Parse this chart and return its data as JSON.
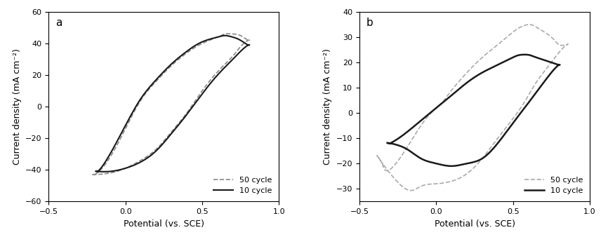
{
  "panel_a": {
    "label": "a",
    "xlim": [
      -0.5,
      1.0
    ],
    "ylim": [
      -60,
      60
    ],
    "xticks": [
      -0.5,
      0.0,
      0.5,
      1.0
    ],
    "yticks": [
      -60,
      -40,
      -20,
      0,
      20,
      40,
      60
    ],
    "xlabel": "Potential (vs. SCE)",
    "ylabel": "Current density (mA cm⁻²)",
    "legend_loc": "lower right",
    "curve10": {
      "upper_x": [
        -0.18,
        -0.1,
        0.0,
        0.1,
        0.2,
        0.3,
        0.4,
        0.5,
        0.6,
        0.65,
        0.7,
        0.75,
        0.8
      ],
      "upper_y": [
        -41,
        -30,
        -12,
        5,
        17,
        27,
        35,
        41,
        44,
        45,
        44,
        42,
        39
      ],
      "lower_x": [
        0.8,
        0.75,
        0.7,
        0.6,
        0.5,
        0.4,
        0.3,
        0.2,
        0.1,
        0.0,
        -0.1,
        -0.18
      ],
      "lower_y": [
        39,
        35,
        30,
        20,
        8,
        -5,
        -17,
        -28,
        -35,
        -39,
        -41,
        -41
      ],
      "color": "#1a1a1a",
      "lw": 1.5,
      "ls": "-"
    },
    "curve50": {
      "upper_x": [
        -0.2,
        -0.1,
        0.0,
        0.1,
        0.2,
        0.3,
        0.4,
        0.5,
        0.6,
        0.65,
        0.7,
        0.75,
        0.8
      ],
      "upper_y": [
        -43,
        -32,
        -14,
        4,
        16,
        26,
        34,
        40,
        44,
        46,
        46,
        45,
        42
      ],
      "lower_x": [
        0.8,
        0.75,
        0.7,
        0.6,
        0.5,
        0.4,
        0.3,
        0.2,
        0.1,
        0.0,
        -0.1,
        -0.2
      ],
      "lower_y": [
        42,
        38,
        32,
        22,
        10,
        -4,
        -16,
        -27,
        -34,
        -39,
        -42,
        -43
      ],
      "color": "#888888",
      "lw": 1.2,
      "ls": "--"
    }
  },
  "panel_b": {
    "label": "b",
    "xlim": [
      -0.5,
      1.0
    ],
    "ylim": [
      -35,
      40
    ],
    "xticks": [
      -0.5,
      0.0,
      0.5,
      1.0
    ],
    "yticks": [
      -30,
      -20,
      -10,
      0,
      10,
      20,
      30,
      40
    ],
    "xlabel": "Potential (vs. SCE)",
    "ylabel": "Current density (mA cm⁻²)",
    "legend_loc": "lower right",
    "curve10": {
      "upper_x": [
        -0.3,
        -0.2,
        -0.1,
        0.0,
        0.1,
        0.2,
        0.3,
        0.4,
        0.5,
        0.55,
        0.6,
        0.65,
        0.75,
        0.8
      ],
      "upper_y": [
        -12,
        -8,
        -3,
        2,
        7,
        12,
        16,
        19,
        22,
        23,
        23,
        22,
        20,
        19
      ],
      "lower_x": [
        0.8,
        0.75,
        0.65,
        0.6,
        0.5,
        0.4,
        0.3,
        0.2,
        0.1,
        0.0,
        -0.1,
        -0.2,
        -0.3
      ],
      "lower_y": [
        19,
        16,
        8,
        4,
        -4,
        -12,
        -18,
        -20,
        -21,
        -20,
        -18,
        -14,
        -12
      ],
      "color": "#1a1a1a",
      "lw": 1.8,
      "ls": "-"
    },
    "curve50": {
      "upper_x": [
        -0.35,
        -0.25,
        -0.1,
        0.0,
        0.05,
        0.1,
        0.2,
        0.3,
        0.4,
        0.5,
        0.55,
        0.6,
        0.65,
        0.75,
        0.8,
        0.85
      ],
      "upper_y": [
        -20,
        -19,
        -5,
        2,
        5,
        9,
        16,
        22,
        27,
        32,
        34,
        35,
        34,
        30,
        27,
        27
      ],
      "lower_x": [
        0.85,
        0.8,
        0.75,
        0.65,
        0.55,
        0.4,
        0.3,
        0.2,
        0.1,
        0.0,
        -0.1,
        -0.2,
        -0.35
      ],
      "lower_y": [
        27,
        24,
        20,
        12,
        2,
        -10,
        -18,
        -24,
        -27,
        -28,
        -29,
        -30,
        -20
      ],
      "color": "#aaaaaa",
      "lw": 1.2,
      "ls": "--"
    }
  }
}
